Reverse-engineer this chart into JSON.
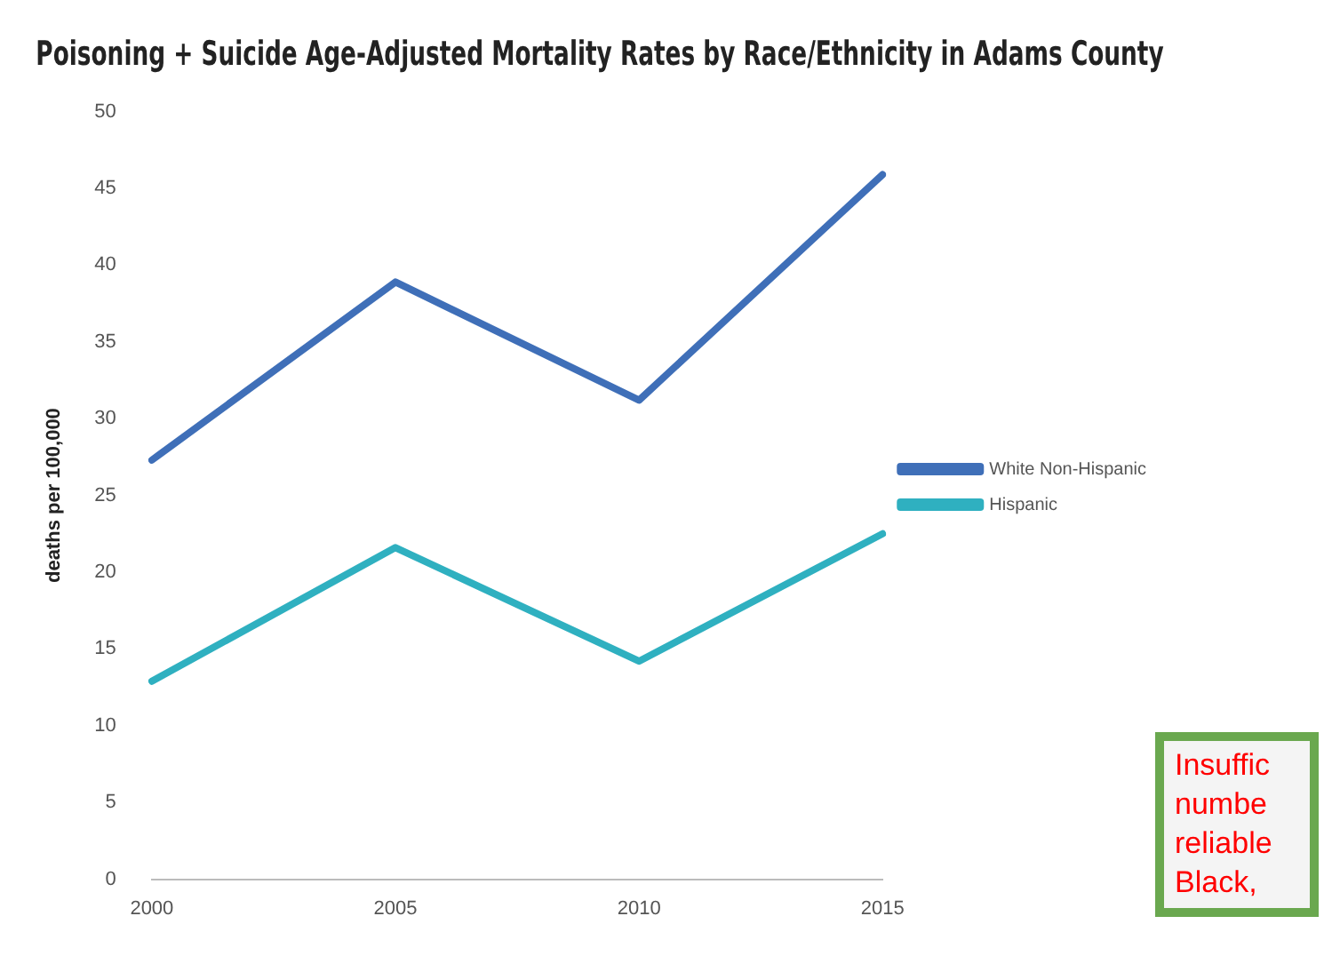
{
  "chart_data": {
    "type": "line",
    "title": "Poisoning + Suicide Age-Adjusted Mortality Rates by Race/Ethnicity in Adams County",
    "ylabel": "deaths per 100,000",
    "categories": [
      "2000",
      "2005",
      "2010",
      "2015"
    ],
    "series": [
      {
        "name": "White Non-Hispanic",
        "color": "#3f6fb8",
        "values": [
          27.3,
          38.9,
          31.2,
          45.9
        ]
      },
      {
        "name": "Hispanic",
        "color": "#2fb0c0",
        "values": [
          12.9,
          21.6,
          14.2,
          22.5
        ]
      }
    ],
    "ylim": [
      0,
      50
    ],
    "yticks": [
      0,
      5,
      10,
      15,
      20,
      25,
      30,
      35,
      40,
      45,
      50
    ],
    "grid": false,
    "legend": "right",
    "marker": "none",
    "line_style": "solid",
    "annotations": [
      "Insuffic numbe reliable Black,"
    ]
  }
}
